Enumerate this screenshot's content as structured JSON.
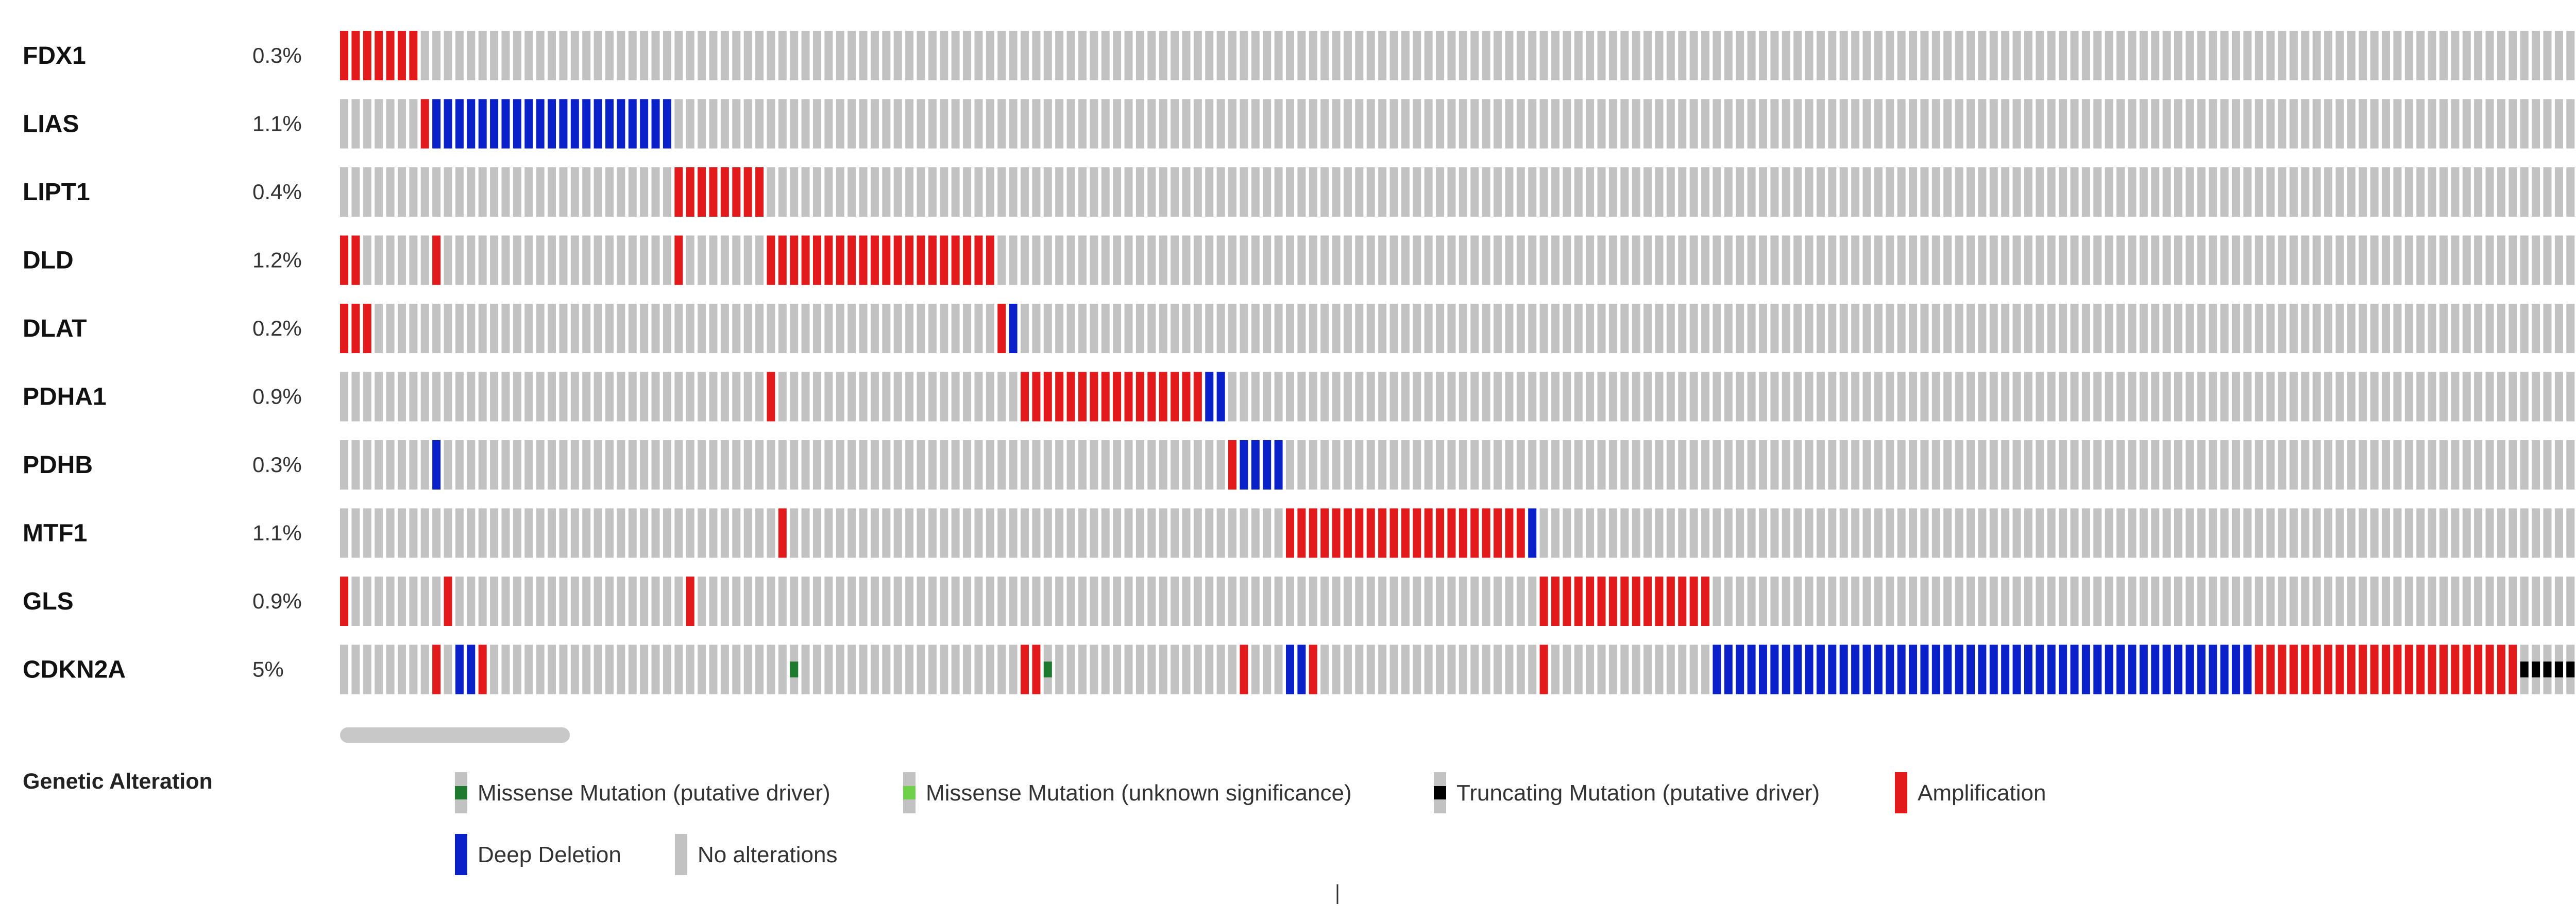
{
  "chart_data": {
    "type": "oncoprint",
    "n_samples": 200,
    "colors": {
      "background": "#c2c2c2",
      "amplification": "#e31a1c",
      "deep_deletion": "#0a20c8",
      "missense_driver": "#1d7a2e",
      "missense_vus": "#6fd04a",
      "truncating_driver": "#000000",
      "scrollbar": "#c8c8c8"
    },
    "genes": [
      {
        "name": "FDX1",
        "pct": "0.3%",
        "alterations": [
          {
            "type": "amplification",
            "start": 0,
            "count": 7
          }
        ]
      },
      {
        "name": "LIAS",
        "pct": "1.1%",
        "alterations": [
          {
            "type": "amplification",
            "start": 7,
            "count": 1
          },
          {
            "type": "deep_deletion",
            "start": 8,
            "count": 21
          }
        ]
      },
      {
        "name": "LIPT1",
        "pct": "0.4%",
        "alterations": [
          {
            "type": "amplification",
            "start": 29,
            "count": 8
          }
        ]
      },
      {
        "name": "DLD",
        "pct": "1.2%",
        "alterations": [
          {
            "type": "amplification",
            "start": 0,
            "count": 2
          },
          {
            "type": "amplification",
            "start": 8,
            "count": 1
          },
          {
            "type": "amplification",
            "start": 29,
            "count": 1
          },
          {
            "type": "amplification",
            "start": 37,
            "count": 20
          }
        ]
      },
      {
        "name": "DLAT",
        "pct": "0.2%",
        "alterations": [
          {
            "type": "amplification",
            "start": 0,
            "count": 3
          },
          {
            "type": "amplification",
            "start": 57,
            "count": 1
          },
          {
            "type": "deep_deletion",
            "start": 58,
            "count": 1
          }
        ]
      },
      {
        "name": "PDHA1",
        "pct": "0.9%",
        "alterations": [
          {
            "type": "amplification",
            "start": 37,
            "count": 1
          },
          {
            "type": "amplification",
            "start": 59,
            "count": 16
          },
          {
            "type": "deep_deletion",
            "start": 75,
            "count": 2
          }
        ]
      },
      {
        "name": "PDHB",
        "pct": "0.3%",
        "alterations": [
          {
            "type": "deep_deletion",
            "start": 8,
            "count": 1
          },
          {
            "type": "amplification",
            "start": 77,
            "count": 1
          },
          {
            "type": "deep_deletion",
            "start": 78,
            "count": 4
          }
        ]
      },
      {
        "name": "MTF1",
        "pct": "1.1%",
        "alterations": [
          {
            "type": "amplification",
            "start": 38,
            "count": 1
          },
          {
            "type": "amplification",
            "start": 82,
            "count": 21
          },
          {
            "type": "deep_deletion",
            "start": 103,
            "count": 1
          }
        ]
      },
      {
        "name": "GLS",
        "pct": "0.9%",
        "alterations": [
          {
            "type": "amplification",
            "start": 0,
            "count": 1
          },
          {
            "type": "amplification",
            "start": 9,
            "count": 1
          },
          {
            "type": "amplification",
            "start": 30,
            "count": 1
          },
          {
            "type": "amplification",
            "start": 104,
            "count": 15
          }
        ]
      },
      {
        "name": "CDKN2A",
        "pct": "5%",
        "alterations": [
          {
            "type": "amplification",
            "start": 8,
            "count": 1
          },
          {
            "type": "deep_deletion",
            "start": 10,
            "count": 2
          },
          {
            "type": "amplification",
            "start": 12,
            "count": 1
          },
          {
            "type": "missense_driver",
            "start": 39,
            "count": 1
          },
          {
            "type": "amplification",
            "start": 59,
            "count": 2
          },
          {
            "type": "missense_driver",
            "start": 61,
            "count": 1
          },
          {
            "type": "amplification",
            "start": 78,
            "count": 1
          },
          {
            "type": "deep_deletion",
            "start": 82,
            "count": 2
          },
          {
            "type": "amplification",
            "start": 84,
            "count": 1
          },
          {
            "type": "amplification",
            "start": 104,
            "count": 1
          },
          {
            "type": "deep_deletion",
            "start": 119,
            "count": 47
          },
          {
            "type": "amplification",
            "start": 166,
            "count": 23
          },
          {
            "type": "truncating_driver",
            "start": 189,
            "count": 5
          },
          {
            "type": "missense_vus",
            "start": 194,
            "count": 1
          },
          {
            "type": "missense_driver",
            "start": 195,
            "count": 1
          },
          {
            "type": "missense_vus",
            "start": 196,
            "count": 4
          }
        ]
      }
    ],
    "legend": {
      "title": "Genetic Alteration",
      "items": [
        {
          "type": "missense_driver",
          "label": "Missense Mutation (putative driver)"
        },
        {
          "type": "missense_vus",
          "label": "Missense Mutation (unknown significance)"
        },
        {
          "type": "truncating_driver",
          "label": "Truncating Mutation (putative driver)"
        },
        {
          "type": "amplification",
          "label": "Amplification"
        },
        {
          "type": "deep_deletion",
          "label": "Deep Deletion"
        },
        {
          "type": "none",
          "label": "No alterations"
        }
      ]
    }
  }
}
